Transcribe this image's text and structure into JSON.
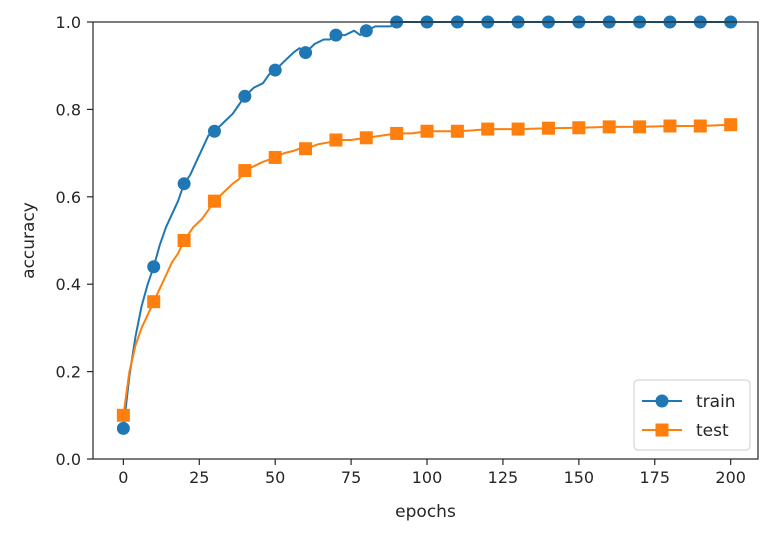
{
  "chart_data": {
    "type": "line",
    "title": "",
    "xlabel": "epochs",
    "ylabel": "accuracy",
    "xlim": [
      -10,
      209
    ],
    "ylim": [
      0,
      1.0
    ],
    "xticks": [
      0,
      25,
      50,
      75,
      100,
      125,
      150,
      175,
      200
    ],
    "xtick_labels": [
      "0",
      "25",
      "50",
      "75",
      "100",
      "125",
      "150",
      "175",
      "200"
    ],
    "yticks": [
      0,
      0.2,
      0.4,
      0.6,
      0.8,
      1.0
    ],
    "ytick_labels": [
      "0.0",
      "0.2",
      "0.4",
      "0.6",
      "0.8",
      "1.0"
    ],
    "grid": false,
    "legend_position": "bottom-right",
    "series": [
      {
        "name": "train",
        "color": "#1f77b4",
        "marker": "circle",
        "marker_x": [
          0,
          10,
          20,
          30,
          40,
          50,
          60,
          70,
          80,
          90,
          100,
          110,
          120,
          130,
          140,
          150,
          160,
          170,
          180,
          190,
          200
        ],
        "marker_y": [
          0.07,
          0.44,
          0.63,
          0.75,
          0.83,
          0.89,
          0.93,
          0.97,
          0.98,
          1.0,
          1.0,
          1.0,
          1.0,
          1.0,
          1.0,
          1.0,
          1.0,
          1.0,
          1.0,
          1.0,
          1.0
        ],
        "x": [
          0,
          2,
          4,
          6,
          8,
          10,
          12,
          14,
          16,
          18,
          20,
          22,
          24,
          26,
          28,
          30,
          33,
          36,
          38,
          40,
          43,
          46,
          48,
          50,
          53,
          56,
          58,
          60,
          63,
          66,
          68,
          70,
          73,
          76,
          78,
          80,
          83,
          86,
          88,
          90,
          93,
          96,
          100,
          110,
          120,
          130,
          140,
          150,
          160,
          170,
          180,
          190,
          200
        ],
        "y": [
          0.07,
          0.19,
          0.28,
          0.35,
          0.4,
          0.44,
          0.49,
          0.53,
          0.56,
          0.59,
          0.63,
          0.65,
          0.68,
          0.71,
          0.74,
          0.75,
          0.77,
          0.79,
          0.81,
          0.83,
          0.85,
          0.86,
          0.88,
          0.89,
          0.91,
          0.93,
          0.94,
          0.93,
          0.95,
          0.96,
          0.96,
          0.97,
          0.97,
          0.98,
          0.97,
          0.98,
          0.99,
          0.99,
          0.99,
          1.0,
          1.0,
          1.0,
          1.0,
          1.0,
          1.0,
          1.0,
          1.0,
          1.0,
          1.0,
          1.0,
          1.0,
          1.0,
          1.0
        ]
      },
      {
        "name": "test",
        "color": "#ff7f0e",
        "marker": "square",
        "marker_x": [
          0,
          10,
          20,
          30,
          40,
          50,
          60,
          70,
          80,
          90,
          100,
          110,
          120,
          130,
          140,
          150,
          160,
          170,
          180,
          190,
          200
        ],
        "marker_y": [
          0.1,
          0.36,
          0.5,
          0.59,
          0.66,
          0.69,
          0.71,
          0.73,
          0.735,
          0.745,
          0.75,
          0.75,
          0.755,
          0.755,
          0.757,
          0.758,
          0.76,
          0.76,
          0.762,
          0.762,
          0.765
        ],
        "x": [
          0,
          2,
          4,
          6,
          8,
          10,
          12,
          14,
          16,
          18,
          20,
          23,
          26,
          28,
          30,
          33,
          36,
          38,
          40,
          43,
          46,
          48,
          50,
          53,
          56,
          58,
          60,
          64,
          68,
          70,
          75,
          80,
          85,
          90,
          95,
          100,
          105,
          110,
          115,
          120,
          130,
          140,
          150,
          160,
          170,
          180,
          190,
          200
        ],
        "y": [
          0.1,
          0.2,
          0.26,
          0.3,
          0.33,
          0.36,
          0.39,
          0.42,
          0.45,
          0.47,
          0.5,
          0.53,
          0.55,
          0.57,
          0.59,
          0.61,
          0.63,
          0.64,
          0.66,
          0.67,
          0.68,
          0.685,
          0.69,
          0.7,
          0.705,
          0.71,
          0.71,
          0.72,
          0.725,
          0.73,
          0.73,
          0.735,
          0.74,
          0.745,
          0.745,
          0.75,
          0.75,
          0.75,
          0.752,
          0.755,
          0.755,
          0.757,
          0.758,
          0.76,
          0.76,
          0.762,
          0.762,
          0.765
        ]
      }
    ]
  }
}
